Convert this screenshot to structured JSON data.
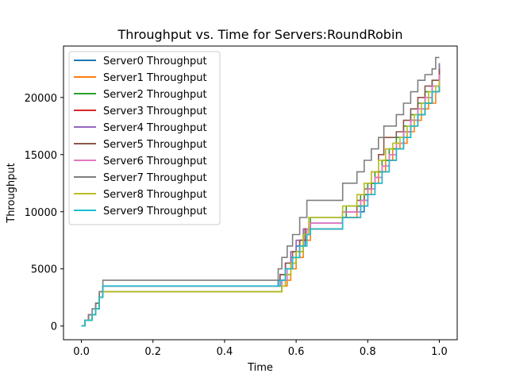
{
  "chart_data": {
    "type": "line",
    "title": "Throughput vs. Time for Servers:RoundRobin",
    "xlabel": "Time",
    "ylabel": "Throughput",
    "xlim": [
      -0.05,
      1.05
    ],
    "ylim": [
      -1200,
      24500
    ],
    "xticks": [
      0.0,
      0.2,
      0.4,
      0.6,
      0.8,
      1.0
    ],
    "xtick_labels": [
      "0.0",
      "0.2",
      "0.4",
      "0.6",
      "0.8",
      "1.0"
    ],
    "yticks": [
      0,
      5000,
      10000,
      15000,
      20000
    ],
    "ytick_labels": [
      "0",
      "5000",
      "10000",
      "15000",
      "20000"
    ],
    "legend_position": "top-left",
    "grid": false,
    "series": [
      {
        "name": "Server0 Throughput",
        "color": "#1f77b4",
        "points": [
          [
            0.0,
            0
          ],
          [
            0.01,
            500
          ],
          [
            0.02,
            500
          ],
          [
            0.03,
            1000
          ],
          [
            0.04,
            1500
          ],
          [
            0.05,
            2500
          ],
          [
            0.06,
            3500
          ],
          [
            0.545,
            3500
          ],
          [
            0.55,
            4000
          ],
          [
            0.57,
            5000
          ],
          [
            0.585,
            6000
          ],
          [
            0.6,
            7000
          ],
          [
            0.625,
            8500
          ],
          [
            0.64,
            9000
          ],
          [
            0.72,
            9000
          ],
          [
            0.73,
            10000
          ],
          [
            0.78,
            10000
          ],
          [
            0.79,
            11500
          ],
          [
            0.8,
            12500
          ],
          [
            0.82,
            13500
          ],
          [
            0.84,
            14500
          ],
          [
            0.86,
            15500
          ],
          [
            0.88,
            16500
          ],
          [
            0.9,
            17000
          ],
          [
            0.92,
            18000
          ],
          [
            0.94,
            18500
          ],
          [
            0.96,
            19500
          ],
          [
            0.98,
            20500
          ],
          [
            1.0,
            20500
          ]
        ]
      },
      {
        "name": "Server1 Throughput",
        "color": "#ff7f0e",
        "points": [
          [
            0.0,
            0
          ],
          [
            0.01,
            500
          ],
          [
            0.02,
            1000
          ],
          [
            0.03,
            1000
          ],
          [
            0.04,
            1500
          ],
          [
            0.05,
            2500
          ],
          [
            0.06,
            3000
          ],
          [
            0.55,
            3000
          ],
          [
            0.56,
            3500
          ],
          [
            0.575,
            4000
          ],
          [
            0.585,
            5000
          ],
          [
            0.6,
            6000
          ],
          [
            0.62,
            7500
          ],
          [
            0.64,
            8500
          ],
          [
            0.72,
            8500
          ],
          [
            0.73,
            9500
          ],
          [
            0.76,
            9500
          ],
          [
            0.77,
            10500
          ],
          [
            0.79,
            11500
          ],
          [
            0.81,
            12500
          ],
          [
            0.83,
            13500
          ],
          [
            0.85,
            14500
          ],
          [
            0.87,
            15500
          ],
          [
            0.89,
            16000
          ],
          [
            0.91,
            17000
          ],
          [
            0.93,
            18000
          ],
          [
            0.95,
            19000
          ],
          [
            0.97,
            19500
          ],
          [
            0.99,
            20500
          ],
          [
            1.0,
            21500
          ]
        ]
      },
      {
        "name": "Server2 Throughput",
        "color": "#2ca02c",
        "points": [
          [
            0.0,
            0
          ],
          [
            0.01,
            500
          ],
          [
            0.02,
            500
          ],
          [
            0.03,
            1000
          ],
          [
            0.04,
            2000
          ],
          [
            0.05,
            2500
          ],
          [
            0.06,
            3000
          ],
          [
            0.55,
            3000
          ],
          [
            0.56,
            3500
          ],
          [
            0.57,
            4500
          ],
          [
            0.585,
            5500
          ],
          [
            0.6,
            6500
          ],
          [
            0.62,
            8000
          ],
          [
            0.64,
            9500
          ],
          [
            0.73,
            9500
          ],
          [
            0.74,
            10500
          ],
          [
            0.77,
            10500
          ],
          [
            0.78,
            11500
          ],
          [
            0.8,
            12500
          ],
          [
            0.82,
            13500
          ],
          [
            0.84,
            14500
          ],
          [
            0.86,
            15500
          ],
          [
            0.88,
            16500
          ],
          [
            0.9,
            17500
          ],
          [
            0.92,
            18500
          ],
          [
            0.94,
            19500
          ],
          [
            0.96,
            20500
          ],
          [
            0.98,
            21500
          ],
          [
            1.0,
            23000
          ]
        ]
      },
      {
        "name": "Server3 Throughput",
        "color": "#d62728",
        "points": [
          [
            0.0,
            0
          ],
          [
            0.01,
            500
          ],
          [
            0.02,
            1000
          ],
          [
            0.03,
            1000
          ],
          [
            0.04,
            1500
          ],
          [
            0.05,
            2500
          ],
          [
            0.06,
            3500
          ],
          [
            0.545,
            3500
          ],
          [
            0.56,
            4000
          ],
          [
            0.57,
            5000
          ],
          [
            0.59,
            6000
          ],
          [
            0.61,
            7500
          ],
          [
            0.63,
            8500
          ],
          [
            0.72,
            8500
          ],
          [
            0.73,
            9500
          ],
          [
            0.76,
            9500
          ],
          [
            0.78,
            10500
          ],
          [
            0.8,
            11500
          ],
          [
            0.82,
            12500
          ],
          [
            0.84,
            13500
          ],
          [
            0.86,
            14500
          ],
          [
            0.88,
            15500
          ],
          [
            0.9,
            16500
          ],
          [
            0.92,
            17500
          ],
          [
            0.94,
            18500
          ],
          [
            0.96,
            19500
          ],
          [
            0.98,
            20500
          ],
          [
            1.0,
            22500
          ]
        ]
      },
      {
        "name": "Server4 Throughput",
        "color": "#9467bd",
        "points": [
          [
            0.0,
            0
          ],
          [
            0.01,
            500
          ],
          [
            0.02,
            500
          ],
          [
            0.03,
            1000
          ],
          [
            0.04,
            1500
          ],
          [
            0.05,
            2500
          ],
          [
            0.06,
            3500
          ],
          [
            0.545,
            3500
          ],
          [
            0.555,
            4500
          ],
          [
            0.57,
            5500
          ],
          [
            0.585,
            6500
          ],
          [
            0.6,
            7500
          ],
          [
            0.62,
            8500
          ],
          [
            0.64,
            9000
          ],
          [
            0.72,
            9000
          ],
          [
            0.73,
            10000
          ],
          [
            0.77,
            10000
          ],
          [
            0.78,
            11000
          ],
          [
            0.8,
            12000
          ],
          [
            0.82,
            13000
          ],
          [
            0.84,
            14000
          ],
          [
            0.86,
            15000
          ],
          [
            0.88,
            16000
          ],
          [
            0.9,
            17000
          ],
          [
            0.92,
            18000
          ],
          [
            0.94,
            19000
          ],
          [
            0.96,
            20000
          ],
          [
            0.98,
            21000
          ],
          [
            1.0,
            23000
          ]
        ]
      },
      {
        "name": "Server5 Throughput",
        "color": "#8c564b",
        "points": [
          [
            0.0,
            0
          ],
          [
            0.01,
            500
          ],
          [
            0.02,
            1000
          ],
          [
            0.03,
            1000
          ],
          [
            0.04,
            2000
          ],
          [
            0.05,
            3000
          ],
          [
            0.06,
            3500
          ],
          [
            0.545,
            3500
          ],
          [
            0.555,
            4500
          ],
          [
            0.57,
            5500
          ],
          [
            0.59,
            6500
          ],
          [
            0.61,
            7500
          ],
          [
            0.625,
            8500
          ],
          [
            0.64,
            9000
          ],
          [
            0.72,
            9000
          ],
          [
            0.73,
            10000
          ],
          [
            0.76,
            10000
          ],
          [
            0.77,
            11000
          ],
          [
            0.79,
            12000
          ],
          [
            0.81,
            13500
          ],
          [
            0.83,
            15000
          ],
          [
            0.845,
            16500
          ],
          [
            0.87,
            16500
          ],
          [
            0.88,
            17000
          ],
          [
            0.9,
            18000
          ],
          [
            0.92,
            19000
          ],
          [
            0.94,
            20000
          ],
          [
            0.96,
            21000
          ],
          [
            0.98,
            21500
          ],
          [
            1.0,
            22500
          ]
        ]
      },
      {
        "name": "Server6 Throughput",
        "color": "#e377c2",
        "points": [
          [
            0.0,
            0
          ],
          [
            0.01,
            500
          ],
          [
            0.02,
            500
          ],
          [
            0.03,
            1000
          ],
          [
            0.04,
            1500
          ],
          [
            0.05,
            2500
          ],
          [
            0.06,
            3500
          ],
          [
            0.545,
            3500
          ],
          [
            0.56,
            4000
          ],
          [
            0.575,
            5000
          ],
          [
            0.59,
            6000
          ],
          [
            0.61,
            7000
          ],
          [
            0.63,
            8500
          ],
          [
            0.64,
            9000
          ],
          [
            0.72,
            9000
          ],
          [
            0.73,
            10000
          ],
          [
            0.77,
            10000
          ],
          [
            0.78,
            11000
          ],
          [
            0.8,
            12000
          ],
          [
            0.82,
            13000
          ],
          [
            0.84,
            14000
          ],
          [
            0.86,
            15000
          ],
          [
            0.88,
            16000
          ],
          [
            0.9,
            17000
          ],
          [
            0.92,
            18000
          ],
          [
            0.94,
            19000
          ],
          [
            0.96,
            20000
          ],
          [
            0.98,
            21000
          ],
          [
            1.0,
            22000
          ]
        ]
      },
      {
        "name": "Server7 Throughput",
        "color": "#7f7f7f",
        "points": [
          [
            0.0,
            0
          ],
          [
            0.01,
            500
          ],
          [
            0.02,
            1000
          ],
          [
            0.03,
            1500
          ],
          [
            0.04,
            2000
          ],
          [
            0.05,
            3000
          ],
          [
            0.06,
            4000
          ],
          [
            0.54,
            4000
          ],
          [
            0.55,
            5000
          ],
          [
            0.56,
            6000
          ],
          [
            0.575,
            7000
          ],
          [
            0.59,
            8000
          ],
          [
            0.61,
            9500
          ],
          [
            0.63,
            11000
          ],
          [
            0.72,
            11000
          ],
          [
            0.73,
            12500
          ],
          [
            0.76,
            12500
          ],
          [
            0.77,
            13500
          ],
          [
            0.79,
            14500
          ],
          [
            0.81,
            15500
          ],
          [
            0.83,
            16500
          ],
          [
            0.845,
            17500
          ],
          [
            0.87,
            17500
          ],
          [
            0.88,
            18500
          ],
          [
            0.9,
            19500
          ],
          [
            0.92,
            20500
          ],
          [
            0.94,
            21500
          ],
          [
            0.96,
            22000
          ],
          [
            0.98,
            22500
          ],
          [
            0.99,
            23500
          ],
          [
            1.0,
            23500
          ]
        ]
      },
      {
        "name": "Server8 Throughput",
        "color": "#bcbd22",
        "points": [
          [
            0.0,
            0
          ],
          [
            0.01,
            500
          ],
          [
            0.02,
            500
          ],
          [
            0.03,
            1000
          ],
          [
            0.04,
            1500
          ],
          [
            0.05,
            2500
          ],
          [
            0.06,
            3000
          ],
          [
            0.55,
            3000
          ],
          [
            0.56,
            3500
          ],
          [
            0.57,
            4500
          ],
          [
            0.585,
            5500
          ],
          [
            0.6,
            6500
          ],
          [
            0.62,
            8000
          ],
          [
            0.635,
            9500
          ],
          [
            0.72,
            9500
          ],
          [
            0.73,
            10500
          ],
          [
            0.76,
            10500
          ],
          [
            0.77,
            11500
          ],
          [
            0.79,
            12500
          ],
          [
            0.81,
            13500
          ],
          [
            0.83,
            14500
          ],
          [
            0.85,
            15500
          ],
          [
            0.87,
            16000
          ],
          [
            0.89,
            16500
          ],
          [
            0.91,
            17500
          ],
          [
            0.93,
            18500
          ],
          [
            0.95,
            19500
          ],
          [
            0.97,
            20500
          ],
          [
            0.99,
            21000
          ],
          [
            1.0,
            21500
          ]
        ]
      },
      {
        "name": "Server9 Throughput",
        "color": "#17becf",
        "points": [
          [
            0.0,
            0
          ],
          [
            0.01,
            500
          ],
          [
            0.02,
            500
          ],
          [
            0.03,
            1000
          ],
          [
            0.04,
            1500
          ],
          [
            0.05,
            2500
          ],
          [
            0.06,
            3500
          ],
          [
            0.545,
            3500
          ],
          [
            0.555,
            4000
          ],
          [
            0.57,
            5000
          ],
          [
            0.59,
            6000
          ],
          [
            0.61,
            7000
          ],
          [
            0.63,
            8000
          ],
          [
            0.64,
            8500
          ],
          [
            0.72,
            8500
          ],
          [
            0.73,
            9500
          ],
          [
            0.77,
            9500
          ],
          [
            0.78,
            10500
          ],
          [
            0.8,
            11500
          ],
          [
            0.82,
            12500
          ],
          [
            0.84,
            13500
          ],
          [
            0.86,
            14500
          ],
          [
            0.88,
            15500
          ],
          [
            0.9,
            16500
          ],
          [
            0.92,
            17500
          ],
          [
            0.94,
            18500
          ],
          [
            0.96,
            19500
          ],
          [
            0.98,
            20500
          ],
          [
            1.0,
            21000
          ]
        ]
      }
    ]
  }
}
